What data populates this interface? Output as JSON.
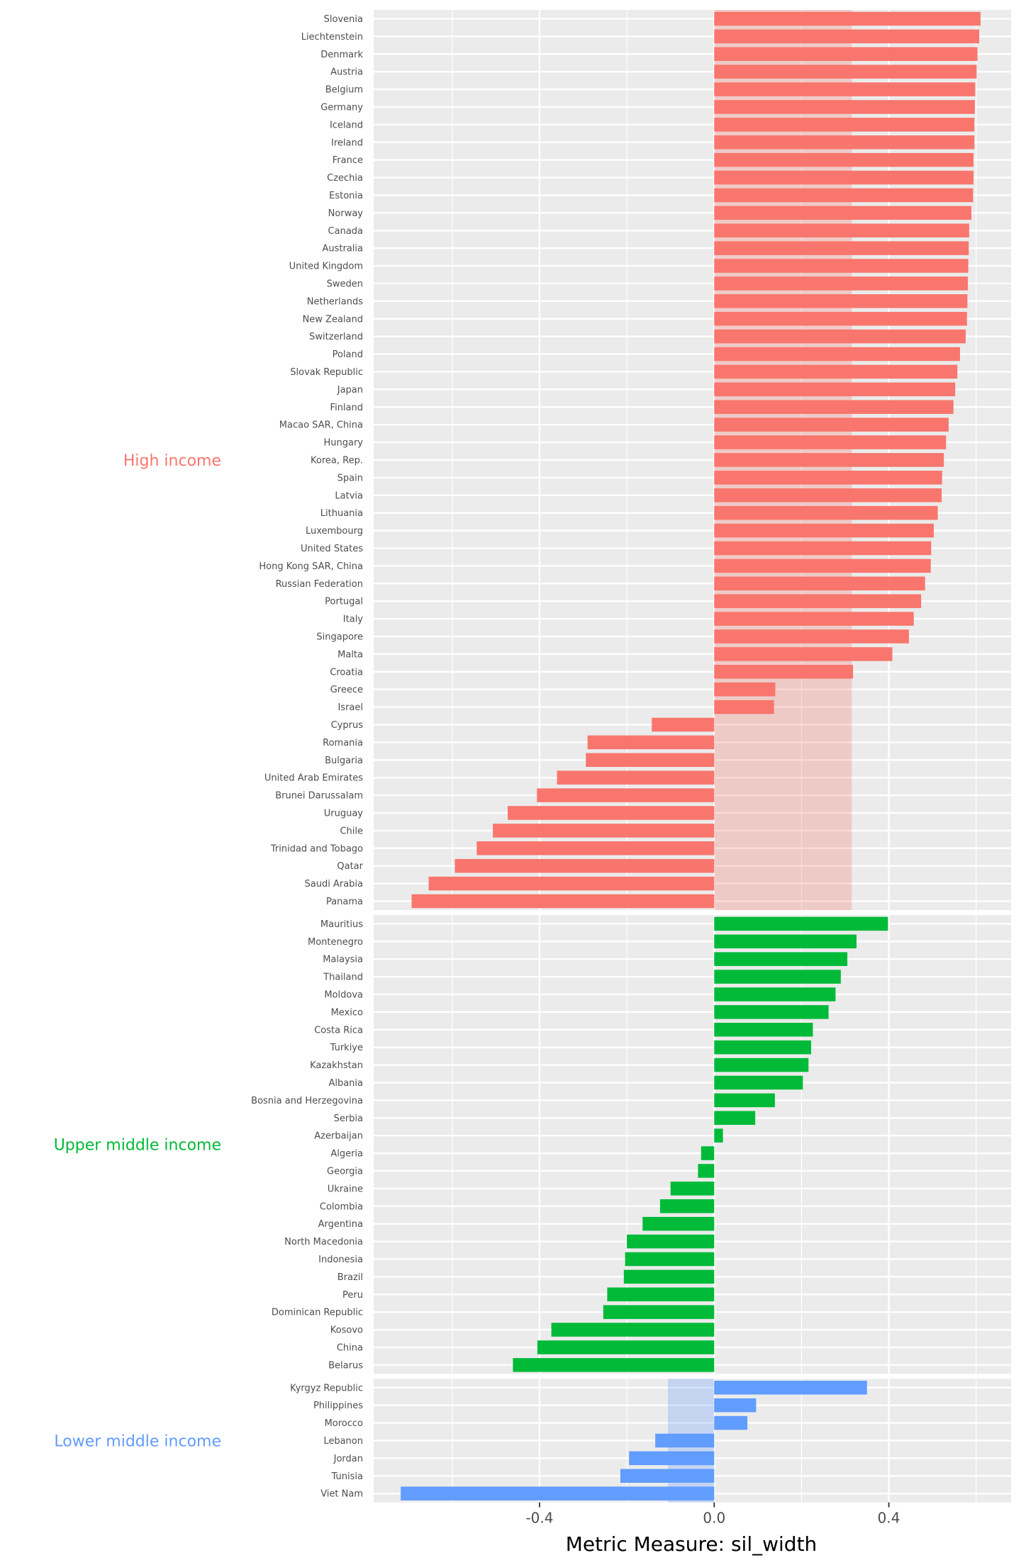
{
  "chart_data": {
    "type": "bar",
    "orientation": "horizontal",
    "xlabel": "Metric Measure: sil_width",
    "xlim": [
      -0.78,
      0.68
    ],
    "x_ticks": [
      -0.4,
      0.0,
      0.4
    ],
    "x_tick_labels": [
      "-0.4",
      "0.0",
      "0.4"
    ],
    "grid": true,
    "groups": [
      {
        "name": "High income",
        "color": "#F8766D",
        "average": 0.315,
        "items": [
          {
            "label": "Slovenia",
            "value": 0.61
          },
          {
            "label": "Liechtenstein",
            "value": 0.607
          },
          {
            "label": "Denmark",
            "value": 0.603
          },
          {
            "label": "Austria",
            "value": 0.601
          },
          {
            "label": "Belgium",
            "value": 0.598
          },
          {
            "label": "Germany",
            "value": 0.597
          },
          {
            "label": "Iceland",
            "value": 0.596
          },
          {
            "label": "Ireland",
            "value": 0.596
          },
          {
            "label": "France",
            "value": 0.594
          },
          {
            "label": "Czechia",
            "value": 0.594
          },
          {
            "label": "Estonia",
            "value": 0.593
          },
          {
            "label": "Norway",
            "value": 0.589
          },
          {
            "label": "Canada",
            "value": 0.584
          },
          {
            "label": "Australia",
            "value": 0.583
          },
          {
            "label": "United Kingdom",
            "value": 0.582
          },
          {
            "label": "Sweden",
            "value": 0.581
          },
          {
            "label": "Netherlands",
            "value": 0.58
          },
          {
            "label": "New Zealand",
            "value": 0.579
          },
          {
            "label": "Switzerland",
            "value": 0.576
          },
          {
            "label": "Poland",
            "value": 0.563
          },
          {
            "label": "Slovak Republic",
            "value": 0.557
          },
          {
            "label": "Japan",
            "value": 0.552
          },
          {
            "label": "Finland",
            "value": 0.548
          },
          {
            "label": "Macao SAR, China",
            "value": 0.537
          },
          {
            "label": "Hungary",
            "value": 0.531
          },
          {
            "label": "Korea, Rep.",
            "value": 0.526
          },
          {
            "label": "Spain",
            "value": 0.522
          },
          {
            "label": "Latvia",
            "value": 0.521
          },
          {
            "label": "Lithuania",
            "value": 0.512
          },
          {
            "label": "Luxembourg",
            "value": 0.503
          },
          {
            "label": "United States",
            "value": 0.497
          },
          {
            "label": "Hong Kong SAR, China",
            "value": 0.496
          },
          {
            "label": "Russian Federation",
            "value": 0.483
          },
          {
            "label": "Portugal",
            "value": 0.474
          },
          {
            "label": "Italy",
            "value": 0.457
          },
          {
            "label": "Singapore",
            "value": 0.446
          },
          {
            "label": "Malta",
            "value": 0.408
          },
          {
            "label": "Croatia",
            "value": 0.318
          },
          {
            "label": "Greece",
            "value": 0.14
          },
          {
            "label": "Israel",
            "value": 0.137
          },
          {
            "label": "Cyprus",
            "value": -0.143
          },
          {
            "label": "Romania",
            "value": -0.29
          },
          {
            "label": "Bulgaria",
            "value": -0.294
          },
          {
            "label": "United Arab Emirates",
            "value": -0.36
          },
          {
            "label": "Brunei Darussalam",
            "value": -0.406
          },
          {
            "label": "Uruguay",
            "value": -0.473
          },
          {
            "label": "Chile",
            "value": -0.507
          },
          {
            "label": "Trinidad and Tobago",
            "value": -0.544
          },
          {
            "label": "Qatar",
            "value": -0.594
          },
          {
            "label": "Saudi Arabia",
            "value": -0.654
          },
          {
            "label": "Panama",
            "value": -0.693
          }
        ]
      },
      {
        "name": "Upper middle income",
        "color": "#00BA38",
        "average": 0.0,
        "items": [
          {
            "label": "Mauritius",
            "value": 0.398
          },
          {
            "label": "Montenegro",
            "value": 0.326
          },
          {
            "label": "Malaysia",
            "value": 0.305
          },
          {
            "label": "Thailand",
            "value": 0.29
          },
          {
            "label": "Moldova",
            "value": 0.278
          },
          {
            "label": "Mexico",
            "value": 0.262
          },
          {
            "label": "Costa Rica",
            "value": 0.226
          },
          {
            "label": "Turkiye",
            "value": 0.222
          },
          {
            "label": "Kazakhstan",
            "value": 0.216
          },
          {
            "label": "Albania",
            "value": 0.203
          },
          {
            "label": "Bosnia and Herzegovina",
            "value": 0.139
          },
          {
            "label": "Serbia",
            "value": 0.094
          },
          {
            "label": "Azerbaijan",
            "value": 0.02
          },
          {
            "label": "Algeria",
            "value": -0.03
          },
          {
            "label": "Georgia",
            "value": -0.037
          },
          {
            "label": "Ukraine",
            "value": -0.1
          },
          {
            "label": "Colombia",
            "value": -0.124
          },
          {
            "label": "Argentina",
            "value": -0.164
          },
          {
            "label": "North Macedonia",
            "value": -0.2
          },
          {
            "label": "Indonesia",
            "value": -0.204
          },
          {
            "label": "Brazil",
            "value": -0.207
          },
          {
            "label": "Peru",
            "value": -0.245
          },
          {
            "label": "Dominican Republic",
            "value": -0.254
          },
          {
            "label": "Kosovo",
            "value": -0.373
          },
          {
            "label": "China",
            "value": -0.405
          },
          {
            "label": "Belarus",
            "value": -0.461
          }
        ]
      },
      {
        "name": "Lower middle income",
        "color": "#619CFF",
        "average": -0.106,
        "items": [
          {
            "label": "Kyrgyz Republic",
            "value": 0.35
          },
          {
            "label": "Philippines",
            "value": 0.096
          },
          {
            "label": "Morocco",
            "value": 0.076
          },
          {
            "label": "Lebanon",
            "value": -0.135
          },
          {
            "label": "Jordan",
            "value": -0.195
          },
          {
            "label": "Tunisia",
            "value": -0.215
          },
          {
            "label": "Viet Nam",
            "value": -0.718
          }
        ]
      }
    ]
  }
}
